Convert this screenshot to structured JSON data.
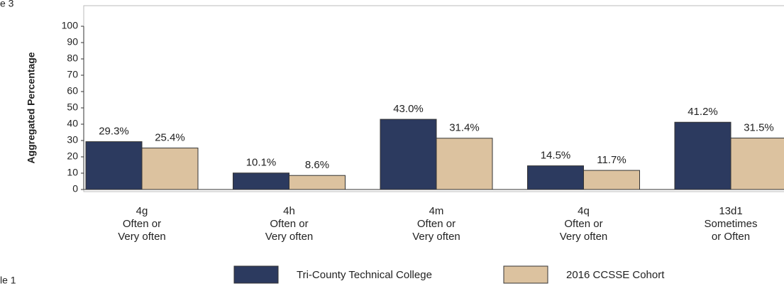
{
  "chart_data": {
    "type": "bar",
    "y_label": "Aggregated Percentage",
    "annotations": [
      "e 3",
      "le 1"
    ],
    "categories": [
      [
        "4g",
        "Often or",
        "Very often"
      ],
      [
        "4h",
        "Often or",
        "Very often"
      ],
      [
        "4m",
        "Often or",
        "Very often"
      ],
      [
        "4q",
        "Often or",
        "Very often"
      ],
      [
        "13d1",
        "Sometimes",
        "or Often"
      ]
    ],
    "series": [
      {
        "name": "Tri-County Technical College",
        "color": "#2c3a5f",
        "values": [
          29.3,
          10.1,
          43.0,
          14.5,
          41.2
        ],
        "value_labels": [
          "29.3%",
          "10.1%",
          "43.0%",
          "14.5%",
          "41.2%"
        ]
      },
      {
        "name": "2016 CCSSE Cohort",
        "color": "#dcc29f",
        "values": [
          25.4,
          8.6,
          31.4,
          11.7,
          31.5
        ],
        "value_labels": [
          "25.4%",
          "8.6%",
          "31.4%",
          "11.7%",
          "31.5%"
        ]
      }
    ],
    "ylim": [
      0,
      100
    ],
    "yticks": [
      0,
      10,
      20,
      30,
      40,
      50,
      60,
      70,
      80,
      90,
      100
    ],
    "grid": false,
    "legend": "bottom"
  }
}
